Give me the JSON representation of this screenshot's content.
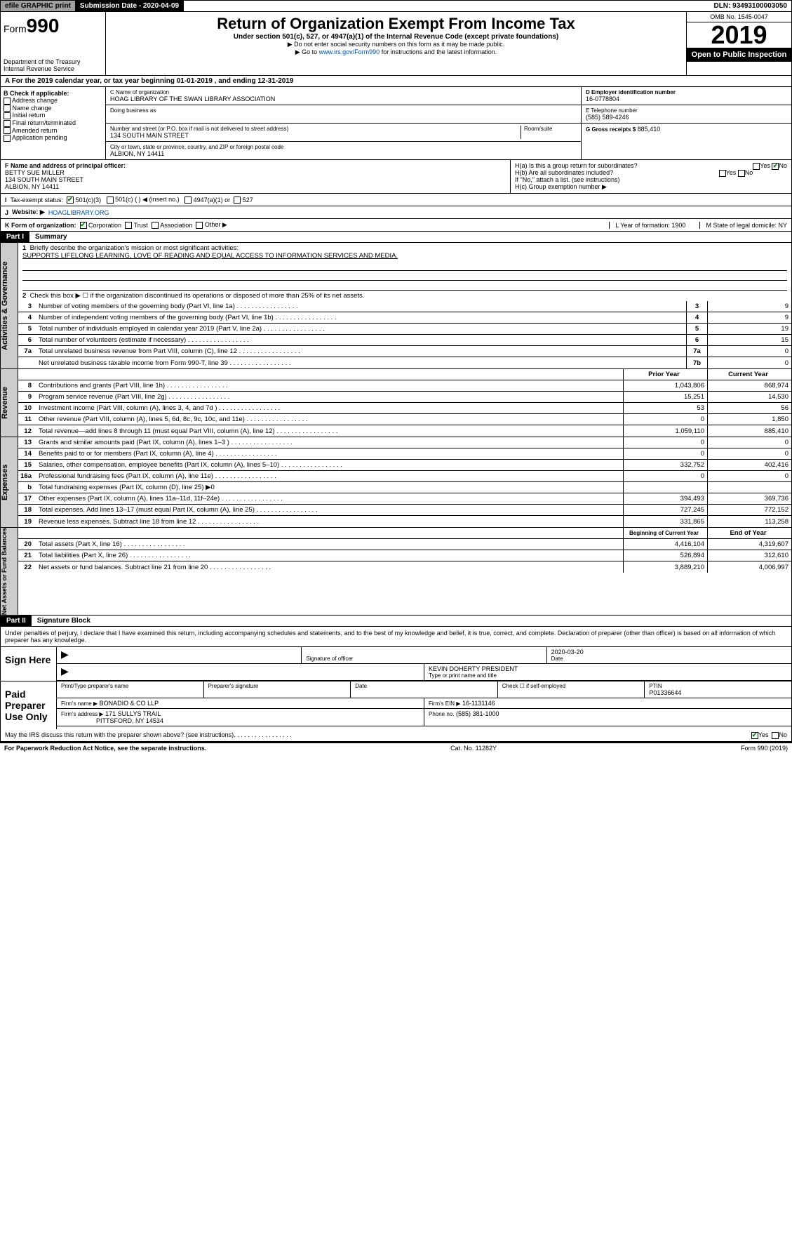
{
  "topbar": {
    "efile": "efile GRAPHIC print",
    "sub_lbl": "Submission Date - 2020-04-09",
    "dln": "DLN: 93493100003050"
  },
  "header": {
    "form_prefix": "Form",
    "form_num": "990",
    "dept": "Department of the Treasury\nInternal Revenue Service",
    "title": "Return of Organization Exempt From Income Tax",
    "subtitle": "Under section 501(c), 527, or 4947(a)(1) of the Internal Revenue Code (except private foundations)",
    "note1": "▶ Do not enter social security numbers on this form as it may be made public.",
    "note2_pre": "▶ Go to ",
    "note2_link": "www.irs.gov/Form990",
    "note2_post": " for instructions and the latest information.",
    "omb": "OMB No. 1545-0047",
    "year": "2019",
    "open": "Open to Public Inspection"
  },
  "period": "For the 2019 calendar year, or tax year beginning 01-01-2019    , and ending 12-31-2019",
  "boxB": {
    "title": "B Check if applicable:",
    "opts": [
      "Address change",
      "Name change",
      "Initial return",
      "Final return/terminated",
      "Amended return",
      "Application pending"
    ]
  },
  "boxC": {
    "name_lbl": "C Name of organization",
    "name": "HOAG LIBRARY OF THE SWAN LIBRARY ASSOCIATION",
    "dba_lbl": "Doing business as",
    "addr_lbl": "Number and street (or P.O. box if mail is not delivered to street address)",
    "room_lbl": "Room/suite",
    "addr": "134 SOUTH MAIN STREET",
    "city_lbl": "City or town, state or province, country, and ZIP or foreign postal code",
    "city": "ALBION, NY  14411"
  },
  "boxD": {
    "lbl": "D Employer identification number",
    "val": "16-0778804"
  },
  "boxE": {
    "lbl": "E Telephone number",
    "val": "(585) 589-4246"
  },
  "boxG": {
    "lbl": "G Gross receipts $",
    "val": "885,410"
  },
  "boxF": {
    "lbl": "F Name and address of principal officer:",
    "val": "BETTY SUE MILLER\n134 SOUTH MAIN STREET\nALBION, NY  14411"
  },
  "boxH": {
    "a": "H(a)  Is this a group return for subordinates?",
    "b": "H(b)  Are all subordinates included?",
    "b_note": "If \"No,\" attach a list. (see instructions)",
    "c": "H(c)  Group exemption number ▶"
  },
  "boxI": {
    "lbl": "Tax-exempt status:",
    "o1": "501(c)(3)",
    "o2": "501(c) (  ) ◀ (insert no.)",
    "o3": "4947(a)(1) or",
    "o4": "527"
  },
  "boxJ": {
    "lbl": "J",
    "txt": "Website: ▶",
    "val": "HOAGLIBRARY.ORG"
  },
  "boxK": {
    "lbl": "K Form of organization:",
    "opts": [
      "Corporation",
      "Trust",
      "Association",
      "Other ▶"
    ],
    "L": "L Year of formation: 1900",
    "M": "M State of legal domicile: NY"
  },
  "part1": {
    "hdr": "Part I",
    "title": "Summary",
    "q1": "Briefly describe the organization's mission or most significant activities:",
    "mission": "SUPPORTS LIFELONG LEARNING, LOVE OF READING AND EQUAL ACCESS TO INFORMATION SERVICES AND MEDIA.",
    "q2": "Check this box ▶ ☐  if the organization discontinued its operations or disposed of more than 25% of its net assets.",
    "rows_gov": [
      {
        "n": "3",
        "d": "Number of voting members of the governing body (Part VI, line 1a)",
        "b": "3",
        "v": "9"
      },
      {
        "n": "4",
        "d": "Number of independent voting members of the governing body (Part VI, line 1b)",
        "b": "4",
        "v": "9"
      },
      {
        "n": "5",
        "d": "Total number of individuals employed in calendar year 2019 (Part V, line 2a)",
        "b": "5",
        "v": "19"
      },
      {
        "n": "6",
        "d": "Total number of volunteers (estimate if necessary)",
        "b": "6",
        "v": "15"
      },
      {
        "n": "7a",
        "d": "Total unrelated business revenue from Part VIII, column (C), line 12",
        "b": "7a",
        "v": "0"
      },
      {
        "n": "",
        "d": "Net unrelated business taxable income from Form 990-T, line 39",
        "b": "7b",
        "v": "0"
      }
    ],
    "col_prior": "Prior Year",
    "col_curr": "Current Year",
    "rows_rev": [
      {
        "n": "8",
        "d": "Contributions and grants (Part VIII, line 1h)",
        "p": "1,043,806",
        "c": "868,974"
      },
      {
        "n": "9",
        "d": "Program service revenue (Part VIII, line 2g)",
        "p": "15,251",
        "c": "14,530"
      },
      {
        "n": "10",
        "d": "Investment income (Part VIII, column (A), lines 3, 4, and 7d )",
        "p": "53",
        "c": "56"
      },
      {
        "n": "11",
        "d": "Other revenue (Part VIII, column (A), lines 5, 6d, 8c, 9c, 10c, and 11e)",
        "p": "0",
        "c": "1,850"
      },
      {
        "n": "12",
        "d": "Total revenue—add lines 8 through 11 (must equal Part VIII, column (A), line 12)",
        "p": "1,059,110",
        "c": "885,410"
      }
    ],
    "rows_exp": [
      {
        "n": "13",
        "d": "Grants and similar amounts paid (Part IX, column (A), lines 1–3 )",
        "p": "0",
        "c": "0"
      },
      {
        "n": "14",
        "d": "Benefits paid to or for members (Part IX, column (A), line 4)",
        "p": "0",
        "c": "0"
      },
      {
        "n": "15",
        "d": "Salaries, other compensation, employee benefits (Part IX, column (A), lines 5–10)",
        "p": "332,752",
        "c": "402,416"
      },
      {
        "n": "16a",
        "d": "Professional fundraising fees (Part IX, column (A), line 11e)",
        "p": "0",
        "c": "0"
      },
      {
        "n": "b",
        "d": "Total fundraising expenses (Part IX, column (D), line 25) ▶0",
        "p": "",
        "c": ""
      },
      {
        "n": "17",
        "d": "Other expenses (Part IX, column (A), lines 11a–11d, 11f–24e)",
        "p": "394,493",
        "c": "369,736"
      },
      {
        "n": "18",
        "d": "Total expenses. Add lines 13–17 (must equal Part IX, column (A), line 25)",
        "p": "727,245",
        "c": "772,152"
      },
      {
        "n": "19",
        "d": "Revenue less expenses. Subtract line 18 from line 12",
        "p": "331,865",
        "c": "113,258"
      }
    ],
    "col_begin": "Beginning of Current Year",
    "col_end": "End of Year",
    "rows_net": [
      {
        "n": "20",
        "d": "Total assets (Part X, line 16)",
        "p": "4,416,104",
        "c": "4,319,607"
      },
      {
        "n": "21",
        "d": "Total liabilities (Part X, line 26)",
        "p": "526,894",
        "c": "312,610"
      },
      {
        "n": "22",
        "d": "Net assets or fund balances. Subtract line 21 from line 20",
        "p": "3,889,210",
        "c": "4,006,997"
      }
    ]
  },
  "tabs": {
    "gov": "Activities & Governance",
    "rev": "Revenue",
    "exp": "Expenses",
    "net": "Net Assets or Fund Balances"
  },
  "part2": {
    "hdr": "Part II",
    "title": "Signature Block",
    "decl": "Under penalties of perjury, I declare that I have examined this return, including accompanying schedules and statements, and to the best of my knowledge and belief, it is true, correct, and complete. Declaration of preparer (other than officer) is based on all information of which preparer has any knowledge.",
    "sign_here": "Sign Here",
    "sig_officer": "Signature of officer",
    "date_val": "2020-03-20",
    "date_lbl": "Date",
    "name_val": "KEVIN DOHERTY PRESIDENT",
    "name_lbl": "Type or print name and title",
    "paid": "Paid Preparer Use Only",
    "prep_name_lbl": "Print/Type preparer's name",
    "prep_sig_lbl": "Preparer's signature",
    "check_lbl": "Check ☐ if self-employed",
    "ptin_lbl": "PTIN",
    "ptin_val": "P01336644",
    "firm_name_lbl": "Firm's name    ▶",
    "firm_name": "BONADIO & CO LLP",
    "firm_ein_lbl": "Firm's EIN ▶",
    "firm_ein": "16-1131146",
    "firm_addr_lbl": "Firm's address ▶",
    "firm_addr": "171 SULLYS TRAIL",
    "firm_city": "PITTSFORD, NY  14534",
    "phone_lbl": "Phone no.",
    "phone": "(585) 381-1000",
    "discuss": "May the IRS discuss this return with the preparer shown above? (see instructions)"
  },
  "footer": {
    "left": "For Paperwork Reduction Act Notice, see the separate instructions.",
    "mid": "Cat. No. 11282Y",
    "right": "Form 990 (2019)"
  }
}
